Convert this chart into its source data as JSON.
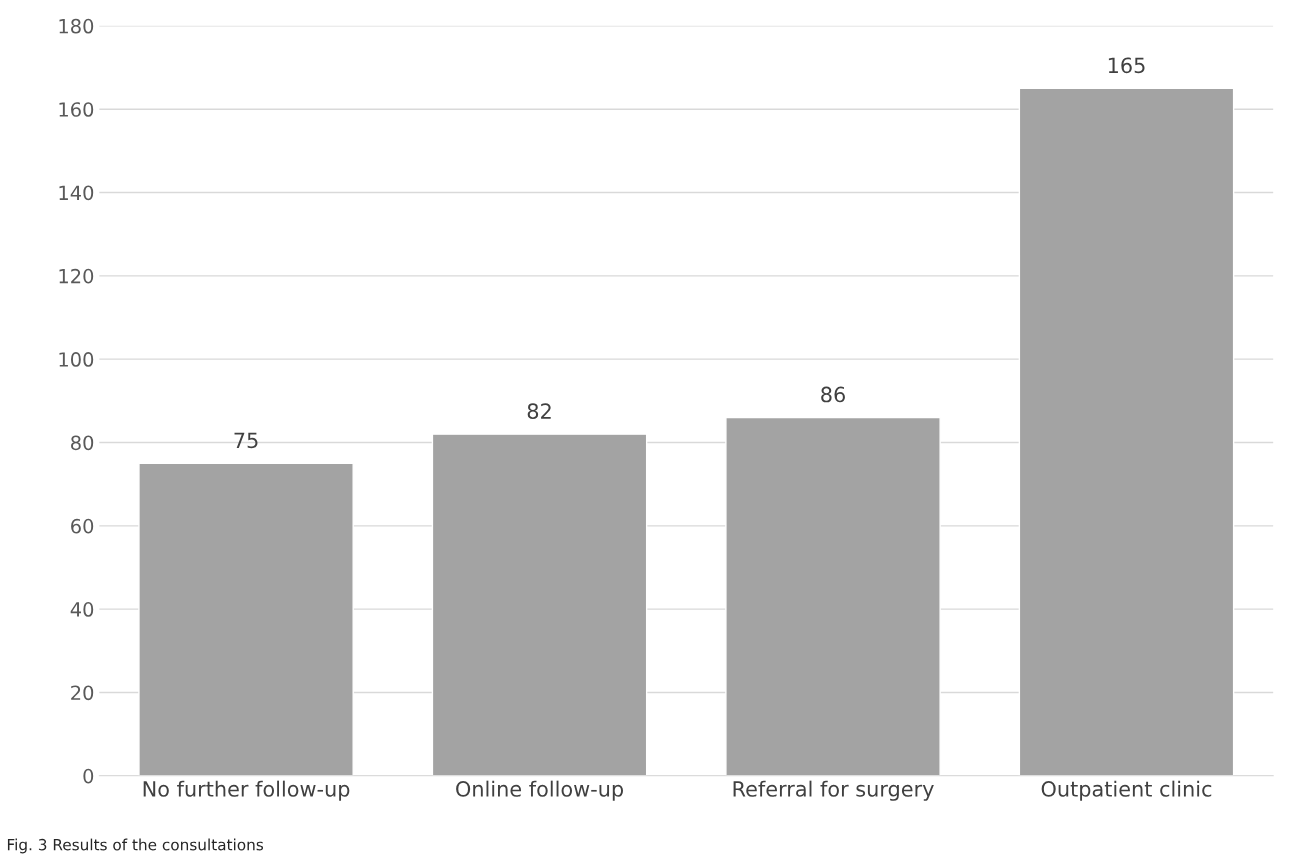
{
  "chart_data": {
    "type": "bar",
    "categories": [
      "No further follow-up",
      "Online follow-up",
      "Referral for surgery",
      "Outpatient clinic"
    ],
    "values": [
      75,
      82,
      86,
      165
    ],
    "color": "#a3a3a3",
    "ylim": [
      0,
      180
    ],
    "yticks": [
      0,
      20,
      40,
      60,
      80,
      100,
      120,
      140,
      160,
      180
    ],
    "grid": "y",
    "data_labels": true,
    "legend": false,
    "annotations": [
      "Fig. 3 Results of the consultations"
    ]
  }
}
